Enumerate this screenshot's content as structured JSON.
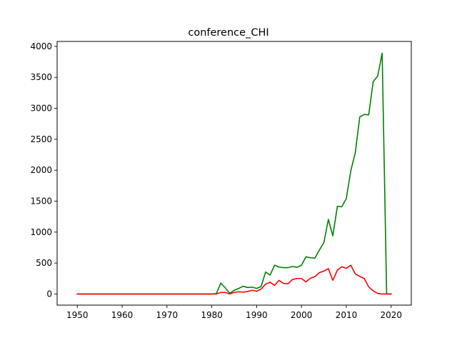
{
  "chart_data": {
    "type": "line",
    "title": "conference_CHI",
    "xlabel": "",
    "ylabel": "",
    "xlim": [
      1945.5,
      2024.5
    ],
    "ylim": [
      -180,
      4080
    ],
    "xticks": [
      1950,
      1960,
      1970,
      1980,
      1990,
      2000,
      2010,
      2020
    ],
    "yticks": [
      0,
      500,
      1000,
      1500,
      2000,
      2500,
      3000,
      3500,
      4000
    ],
    "grid": false,
    "legend": "none",
    "x": [
      1950,
      1951,
      1952,
      1953,
      1954,
      1955,
      1956,
      1957,
      1958,
      1959,
      1960,
      1961,
      1962,
      1963,
      1964,
      1965,
      1966,
      1967,
      1968,
      1969,
      1970,
      1971,
      1972,
      1973,
      1974,
      1975,
      1976,
      1977,
      1978,
      1979,
      1980,
      1981,
      1982,
      1983,
      1984,
      1985,
      1986,
      1987,
      1988,
      1989,
      1990,
      1991,
      1992,
      1993,
      1994,
      1995,
      1996,
      1997,
      1998,
      1999,
      2000,
      2001,
      2002,
      2003,
      2004,
      2005,
      2006,
      2007,
      2008,
      2009,
      2010,
      2011,
      2012,
      2013,
      2014,
      2015,
      2016,
      2017,
      2018,
      2019,
      2020
    ],
    "series": [
      {
        "color": "#008000",
        "values": [
          0,
          0,
          0,
          0,
          0,
          0,
          0,
          0,
          0,
          0,
          0,
          0,
          0,
          0,
          0,
          0,
          0,
          0,
          0,
          0,
          0,
          0,
          0,
          0,
          0,
          0,
          0,
          0,
          0,
          0,
          0,
          5,
          175,
          100,
          10,
          60,
          90,
          125,
          105,
          110,
          90,
          120,
          355,
          305,
          465,
          435,
          425,
          425,
          445,
          430,
          465,
          600,
          585,
          580,
          710,
          830,
          1205,
          940,
          1415,
          1410,
          1540,
          1990,
          2280,
          2860,
          2900,
          2895,
          3430,
          3520,
          3890,
          0,
          0
        ]
      },
      {
        "color": "#ff0000",
        "values": [
          0,
          0,
          0,
          0,
          0,
          0,
          0,
          0,
          0,
          0,
          0,
          0,
          0,
          0,
          0,
          0,
          0,
          0,
          0,
          0,
          0,
          0,
          0,
          0,
          0,
          0,
          0,
          0,
          0,
          0,
          0,
          0,
          25,
          25,
          0,
          25,
          35,
          30,
          40,
          60,
          45,
          80,
          160,
          190,
          140,
          220,
          170,
          165,
          235,
          250,
          250,
          195,
          255,
          280,
          345,
          370,
          410,
          220,
          385,
          440,
          415,
          465,
          325,
          285,
          250,
          115,
          50,
          10,
          0,
          0,
          0
        ]
      }
    ]
  }
}
